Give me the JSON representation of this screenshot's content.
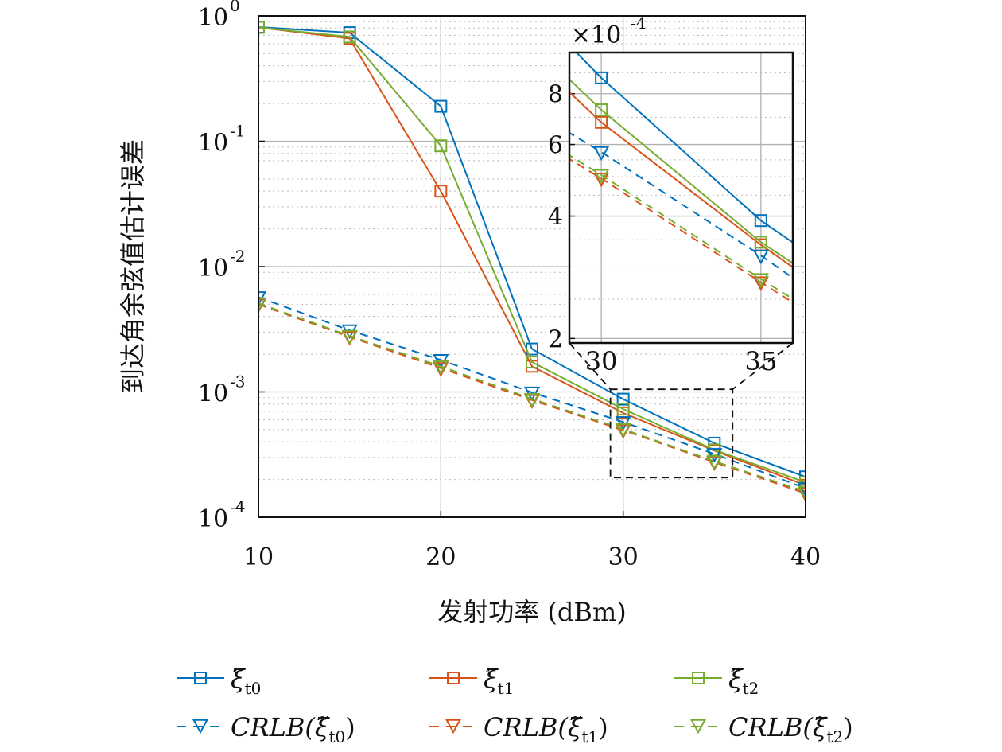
{
  "chart_data": {
    "type": "line",
    "xlabel": "发射功率 (dBm)",
    "ylabel": "到达角余弦值估计误差",
    "xlim": [
      10,
      40
    ],
    "ylim": [
      0.0001,
      1
    ],
    "yscale": "log",
    "grid": true,
    "minor_grid": true,
    "x_ticks": [
      "10",
      "20",
      "30",
      "40"
    ],
    "y_ticks": [
      {
        "base": "10",
        "exp": "0"
      },
      {
        "base": "10",
        "exp": "-1"
      },
      {
        "base": "10",
        "exp": "-2"
      },
      {
        "base": "10",
        "exp": "-3"
      },
      {
        "base": "10",
        "exp": "-4"
      }
    ],
    "legend_placement": "bottom",
    "x": [
      10,
      15,
      20,
      25,
      30,
      35,
      40
    ],
    "series": [
      {
        "name": "ξ̃t0",
        "label_main": "ξ̃",
        "label_sub": "t0",
        "color": "#0072BD",
        "style": "solid",
        "marker": "square",
        "values": [
          0.815,
          0.735,
          0.19,
          0.0022,
          0.000875,
          0.00039,
          0.00021
        ]
      },
      {
        "name": "ξ̃t1",
        "label_main": "ξ̃",
        "label_sub": "t1",
        "color": "#D95319",
        "style": "solid",
        "marker": "square",
        "values": [
          0.81,
          0.66,
          0.04,
          0.0016,
          0.00068,
          0.00034,
          0.00018
        ]
      },
      {
        "name": "ξ̃t2",
        "label_main": "ξ̃",
        "label_sub": "t2",
        "color": "#77AC30",
        "style": "solid",
        "marker": "square",
        "values": [
          0.81,
          0.68,
          0.092,
          0.00173,
          0.00073,
          0.000345,
          0.00019
        ]
      },
      {
        "name": "CRLB(ξ̃t0)",
        "label_main": "CRLB(ξ̃",
        "label_sub": "t0",
        "label_end": ")",
        "color": "#0072BD",
        "style": "dashed",
        "marker": "triangle-down",
        "values": [
          0.0057,
          0.0031,
          0.0018,
          0.00099,
          0.000575,
          0.00032,
          0.00017
        ]
      },
      {
        "name": "CRLB(ξ̃t1)",
        "label_main": "CRLB(ξ̃",
        "label_sub": "t1",
        "label_end": ")",
        "color": "#D95319",
        "style": "dashed",
        "marker": "triangle-down",
        "values": [
          0.005,
          0.00275,
          0.00155,
          0.00086,
          0.000495,
          0.000275,
          0.000155
        ]
      },
      {
        "name": "CRLB(ξ̃t2)",
        "label_main": "CRLB(ξ̃",
        "label_sub": "t2",
        "label_end": ")",
        "color": "#77AC30",
        "style": "dashed",
        "marker": "triangle-down",
        "values": [
          0.0051,
          0.0028,
          0.0016,
          0.00088,
          0.000505,
          0.00028,
          0.00016
        ]
      }
    ],
    "inset": {
      "xlim": [
        29,
        36
      ],
      "ylim": [
        0.000195,
        0.00101
      ],
      "yscale": "log",
      "zoom_region": {
        "x": [
          29.3,
          36
        ],
        "y": [
          0.000207,
          0.00105
        ]
      },
      "x_ticks": [
        "30",
        "35"
      ],
      "y_ticks": [
        "2",
        "4",
        "6",
        "8"
      ],
      "multiplier": {
        "base": "×10",
        "exp": "-4"
      }
    }
  }
}
